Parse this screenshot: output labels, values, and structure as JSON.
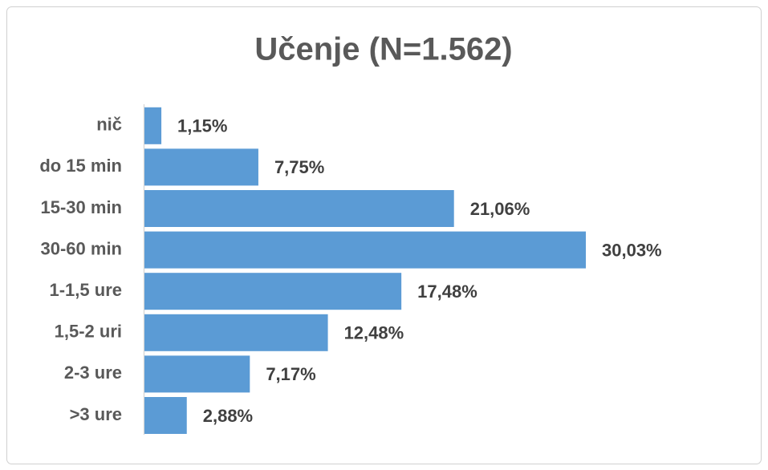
{
  "chart_data": {
    "type": "hbar",
    "title": "Učenje (N=1.562)",
    "categories": [
      "nič",
      "do 15 min",
      "15-30 min",
      "30-60 min",
      "1-1,5 ure",
      "1,5-2 uri",
      "2-3 ure",
      ">3 ure"
    ],
    "values": [
      1.15,
      7.75,
      21.06,
      30.03,
      17.48,
      12.48,
      7.17,
      2.88
    ],
    "value_labels": [
      "1,15%",
      "7,75%",
      "21,06%",
      "30,03%",
      "17,48%",
      "12,48%",
      "7,17%",
      "2,88%"
    ],
    "color": "#5b9bd5"
  }
}
